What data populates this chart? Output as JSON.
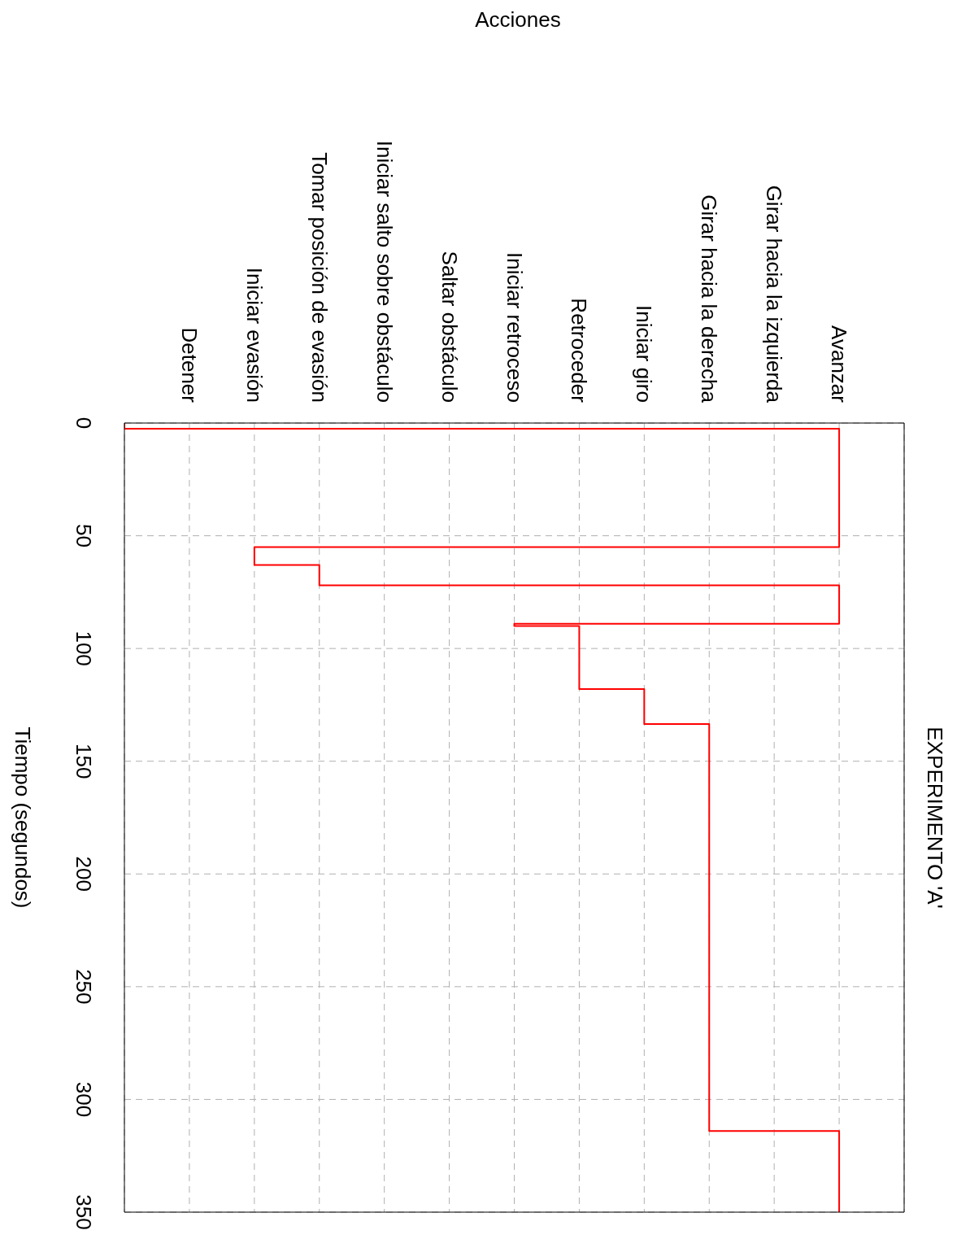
{
  "chart_data": {
    "type": "step",
    "title": "EXPERIMENTO 'A'",
    "annotations": [
      "Acciones"
    ],
    "ylabel": "Tiempo (segundos)",
    "categories": [
      null,
      "Detener",
      "Iniciar evasión",
      "Tomar posición de evasión",
      "Iniciar salto sobre obstáculo",
      "Saltar obstáculo",
      "Iniciar retroceso",
      "Retroceder",
      "Iniciar giro",
      "Girar hacia la derecha",
      "Girar hacia la izquierda",
      "Avanzar",
      null
    ],
    "series": [
      {
        "color": "#ff0000",
        "x": [
          null,
          "Avanzar",
          "Iniciar evasión",
          "Tomar posición de evasión",
          "Avanzar",
          "Iniciar retroceso",
          "Retroceder",
          "Iniciar giro",
          "Girar hacia la derecha",
          "Avanzar",
          "Avanzar"
        ],
        "values": [
          0,
          2.5,
          55,
          63,
          72,
          89,
          90,
          118,
          133.5,
          314,
          350
        ]
      }
    ],
    "ylim": [
      350,
      0
    ],
    "yticks": [
      0,
      50,
      100,
      150,
      200,
      250,
      300,
      350
    ],
    "grid": true,
    "legend": false,
    "marker": "none",
    "line_style": "solid"
  }
}
